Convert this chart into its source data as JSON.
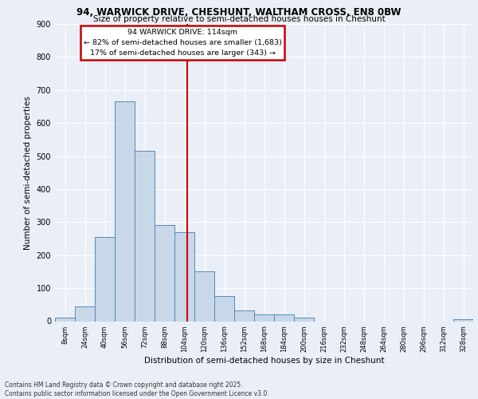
{
  "title_line1": "94, WARWICK DRIVE, CHESHUNT, WALTHAM CROSS, EN8 0BW",
  "title_line2": "Size of property relative to semi-detached houses houses in Cheshunt",
  "xlabel": "Distribution of semi-detached houses by size in Cheshunt",
  "ylabel": "Number of semi-detached properties",
  "bin_starts": [
    8,
    24,
    40,
    56,
    72,
    88,
    104,
    120,
    136,
    152,
    168,
    184,
    200,
    216,
    232,
    248,
    264,
    280,
    296,
    312,
    328
  ],
  "bin_width": 16,
  "bar_heights": [
    10,
    45,
    255,
    665,
    515,
    290,
    270,
    150,
    75,
    32,
    20,
    20,
    10,
    0,
    0,
    0,
    0,
    0,
    0,
    0,
    5
  ],
  "bar_color": "#c8d8e8",
  "bar_edge_color": "#5588bb",
  "property_size": 114,
  "vline_color": "#cc0000",
  "annotation_box_edge": "#cc0000",
  "ylim": [
    0,
    900
  ],
  "yticks": [
    0,
    100,
    200,
    300,
    400,
    500,
    600,
    700,
    800,
    900
  ],
  "background_color": "#eaeff7",
  "plot_background": "#eaeff7",
  "grid_color": "#ffffff",
  "footnote1": "Contains HM Land Registry data © Crown copyright and database right 2025.",
  "footnote2": "Contains public sector information licensed under the Open Government Licence v3.0."
}
